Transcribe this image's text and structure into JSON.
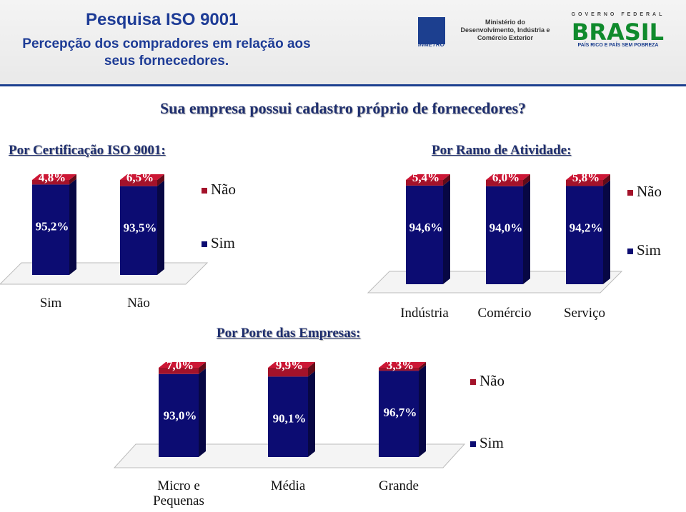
{
  "header": {
    "title": "Pesquisa ISO 9001",
    "subtitle": "Percepção dos compradores em relação aos seus fornecedores.",
    "logos": {
      "inmetro": "INMETRO",
      "ministry": "Ministério do Desenvolvimento, Indústria e Comércio Exterior",
      "government": "GOVERNO FEDERAL",
      "brand": "BRASIL",
      "slogan": "PAÍS RICO E PAÍS SEM POBREZA"
    }
  },
  "question": "Sua empresa possui cadastro próprio de fornecedores?",
  "chart_data": [
    {
      "type": "bar",
      "stacked": true,
      "title": "Por Certificação ISO 9001:",
      "categories": [
        "Sim",
        "Não"
      ],
      "ylim": [
        0,
        100
      ],
      "series": [
        {
          "name": "Sim",
          "color": "#0c0c72",
          "values": [
            95.2,
            93.5
          ],
          "value_labels": [
            "95,2%",
            "93,5%"
          ]
        },
        {
          "name": "Não",
          "color": "#a3122a",
          "values": [
            4.8,
            6.5
          ],
          "value_labels": [
            "4,8%",
            "6,5%"
          ]
        }
      ]
    },
    {
      "type": "bar",
      "stacked": true,
      "title": "Por Ramo de Atividade:",
      "categories": [
        "Indústria",
        "Comércio",
        "Serviço"
      ],
      "ylim": [
        0,
        100
      ],
      "series": [
        {
          "name": "Sim",
          "color": "#0c0c72",
          "values": [
            94.6,
            94.0,
            94.2
          ],
          "value_labels": [
            "94,6%",
            "94,0%",
            "94,2%"
          ]
        },
        {
          "name": "Não",
          "color": "#a3122a",
          "values": [
            5.4,
            6.0,
            5.8
          ],
          "value_labels": [
            "5,4%",
            "6,0%",
            "5,8%"
          ]
        }
      ]
    },
    {
      "type": "bar",
      "stacked": true,
      "title": "Por Porte das Empresas:",
      "categories": [
        "Micro e Pequenas",
        "Média",
        "Grande"
      ],
      "ylim": [
        0,
        100
      ],
      "series": [
        {
          "name": "Sim",
          "color": "#0c0c72",
          "values": [
            93.0,
            90.1,
            96.7
          ],
          "value_labels": [
            "93,0%",
            "90,1%",
            "96,7%"
          ]
        },
        {
          "name": "Não",
          "color": "#a3122a",
          "values": [
            7.0,
            9.9,
            3.3
          ],
          "value_labels": [
            "7,0%",
            "9,9%",
            "3,3%"
          ]
        }
      ]
    }
  ]
}
